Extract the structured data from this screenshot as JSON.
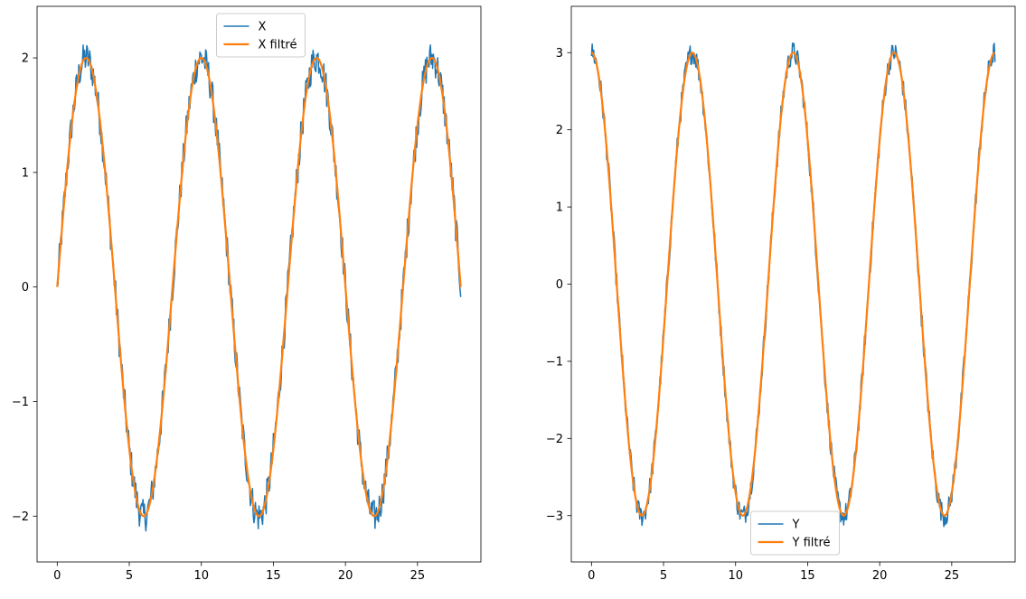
{
  "chart_data": [
    {
      "type": "line",
      "xlim": [
        -1.4,
        29.4
      ],
      "ylim": [
        -2.4,
        2.45
      ],
      "xticks": [
        0,
        5,
        10,
        15,
        20,
        25
      ],
      "xtick_labels": [
        "0",
        "5",
        "10",
        "15",
        "20",
        "25"
      ],
      "yticks": [
        -2,
        -1,
        0,
        1,
        2
      ],
      "ytick_labels": [
        "−2",
        "−1",
        "0",
        "1",
        "2"
      ],
      "grid": false,
      "legend_position": "upper center",
      "series": [
        {
          "name": "X",
          "color": "#1f77b4",
          "function": "sine",
          "amplitude": 2,
          "period": 8,
          "phase_offset": 0,
          "noise": 0.12,
          "x_start": 0,
          "x_end": 28,
          "points": 560
        },
        {
          "name": "X filtré",
          "color": "#ff7f0e",
          "function": "sine",
          "amplitude": 2,
          "period": 8,
          "phase_offset": 0,
          "x_start": 0,
          "x_end": 28,
          "points": 560
        }
      ]
    },
    {
      "type": "line",
      "xlim": [
        -1.4,
        29.4
      ],
      "ylim": [
        -3.6,
        3.6
      ],
      "xticks": [
        0,
        5,
        10,
        15,
        20,
        25
      ],
      "xtick_labels": [
        "0",
        "5",
        "10",
        "15",
        "20",
        "25"
      ],
      "yticks": [
        -3,
        -2,
        -1,
        0,
        1,
        2,
        3
      ],
      "ytick_labels": [
        "−3",
        "−2",
        "−1",
        "0",
        "1",
        "2",
        "3"
      ],
      "grid": false,
      "legend_position": "lower center",
      "series": [
        {
          "name": "Y",
          "color": "#1f77b4",
          "function": "cosine",
          "amplitude": 3,
          "period": 7,
          "phase_offset": 0,
          "noise": 0.12,
          "x_start": 0,
          "x_end": 28,
          "points": 560
        },
        {
          "name": "Y filtré",
          "color": "#ff7f0e",
          "function": "cosine",
          "amplitude": 3,
          "period": 7,
          "phase_offset": 0,
          "x_start": 0,
          "x_end": 28,
          "points": 560
        }
      ]
    }
  ]
}
